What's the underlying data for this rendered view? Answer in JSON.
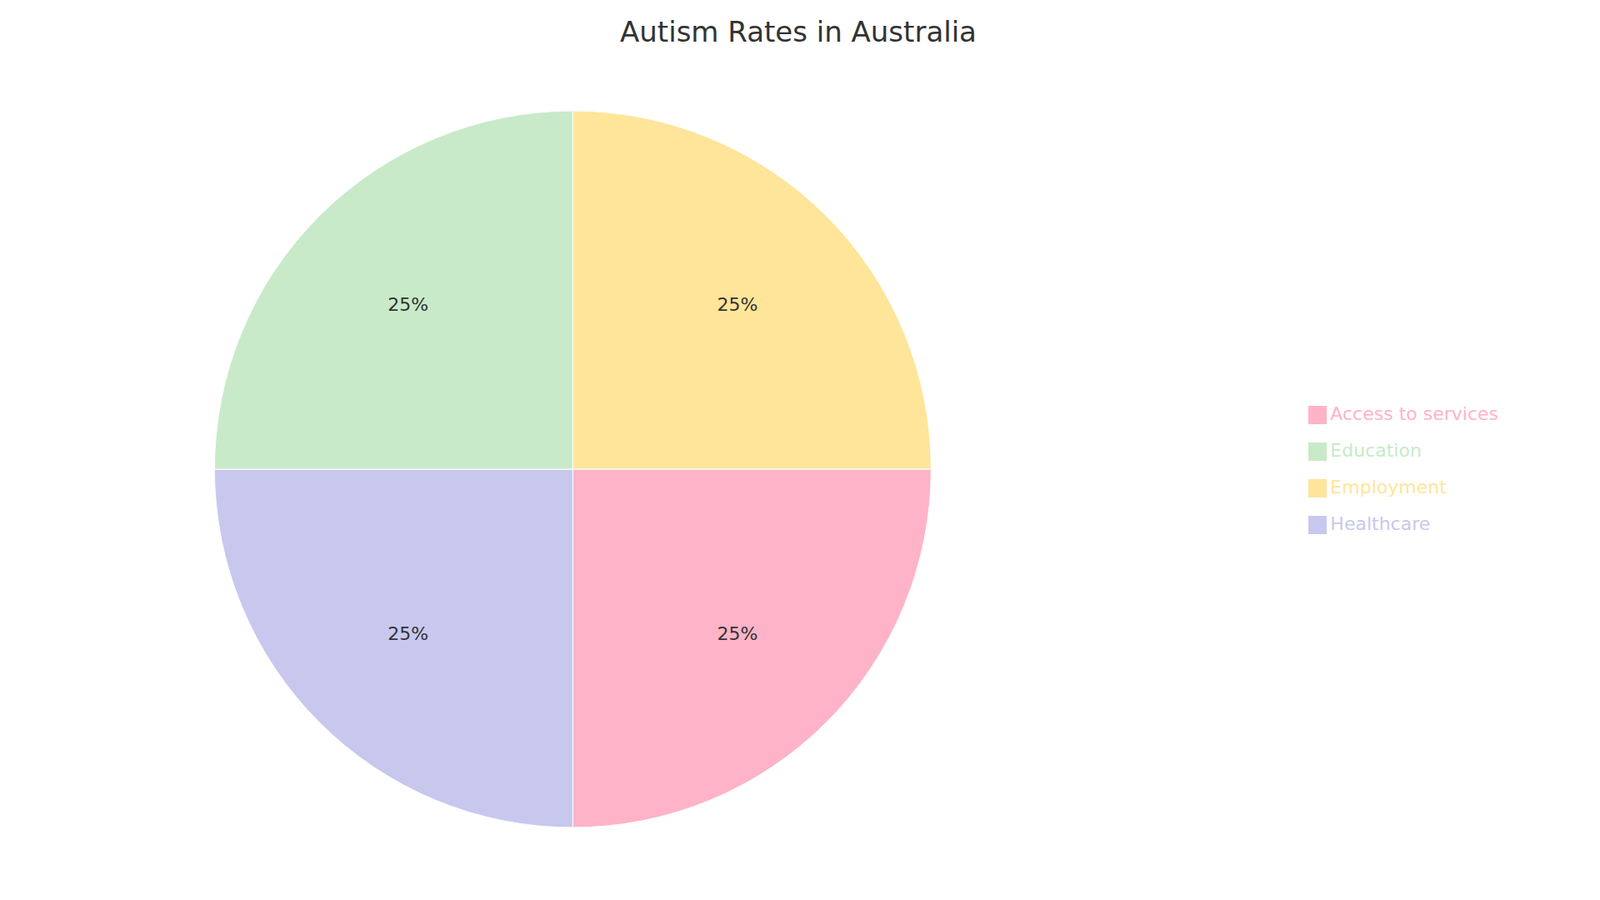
{
  "chart_data": {
    "type": "pie",
    "title": "Autism Rates in Australia",
    "categories": [
      "Access to services",
      "Healthcare",
      "Education",
      "Employment"
    ],
    "values": [
      25,
      25,
      25,
      25
    ],
    "value_labels": [
      "25%",
      "25%",
      "25%",
      "25%"
    ],
    "data_labels": true,
    "colors": [
      "#FFB3C8",
      "#C8C8EE",
      "#C8EAC8",
      "#FFE599"
    ],
    "legend": "right"
  }
}
